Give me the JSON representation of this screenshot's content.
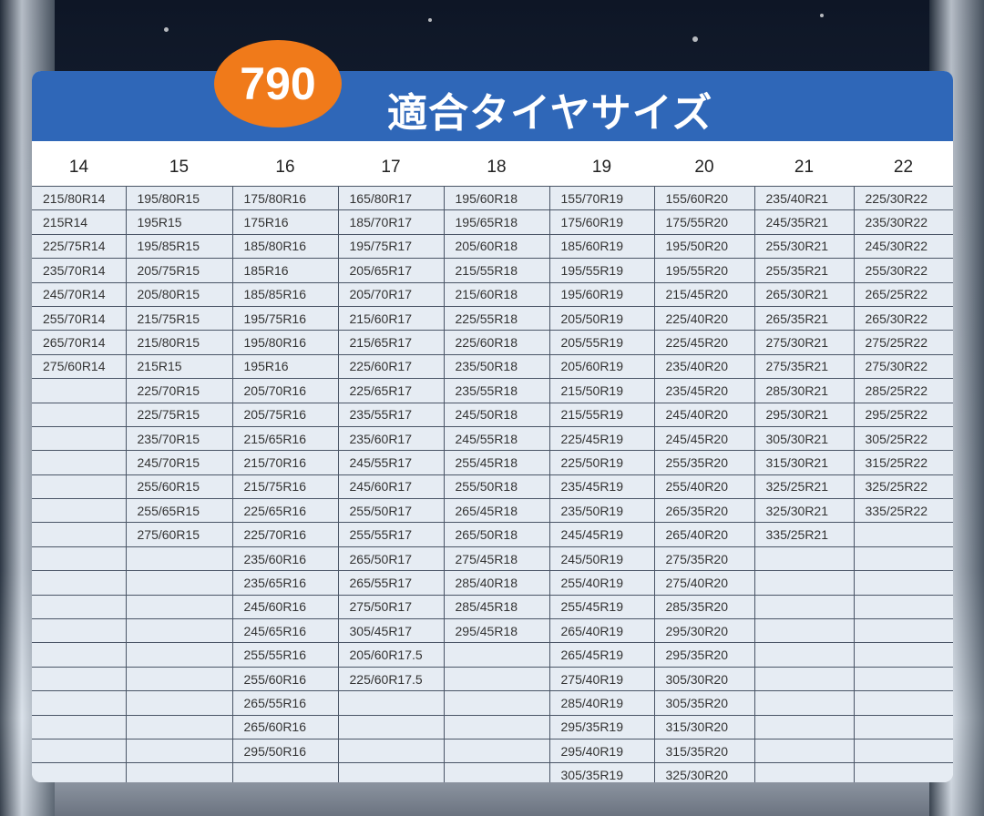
{
  "badge": "790",
  "title": "適合タイヤサイズ",
  "colors": {
    "title_bar": "#2f67b8",
    "badge": "#f07a1a",
    "cell": "#e6ecf3"
  },
  "columns": [
    {
      "header": "14",
      "sizes": [
        "215/80R14",
        "215R14",
        "225/75R14",
        "235/70R14",
        "245/70R14",
        "255/70R14",
        "265/70R14",
        "275/60R14"
      ]
    },
    {
      "header": "15",
      "sizes": [
        "195/80R15",
        "195R15",
        "195/85R15",
        "205/75R15",
        "205/80R15",
        "215/75R15",
        "215/80R15",
        "215R15",
        "225/70R15",
        "225/75R15",
        "235/70R15",
        "245/70R15",
        "255/60R15",
        "255/65R15",
        "275/60R15"
      ]
    },
    {
      "header": "16",
      "sizes": [
        "175/80R16",
        "175R16",
        "185/80R16",
        "185R16",
        "185/85R16",
        "195/75R16",
        "195/80R16",
        "195R16",
        "205/70R16",
        "205/75R16",
        "215/65R16",
        "215/70R16",
        "215/75R16",
        "225/65R16",
        "225/70R16",
        "235/60R16",
        "235/65R16",
        "245/60R16",
        "245/65R16",
        "255/55R16",
        "255/60R16",
        "265/55R16",
        "265/60R16",
        "295/50R16"
      ]
    },
    {
      "header": "17",
      "sizes": [
        "165/80R17",
        "185/70R17",
        "195/75R17",
        "205/65R17",
        "205/70R17",
        "215/60R17",
        "215/65R17",
        "225/60R17",
        "225/65R17",
        "235/55R17",
        "235/60R17",
        "245/55R17",
        "245/60R17",
        "255/50R17",
        "255/55R17",
        "265/50R17",
        "265/55R17",
        "275/50R17",
        "305/45R17",
        "205/60R17.5",
        "225/60R17.5"
      ]
    },
    {
      "header": "18",
      "sizes": [
        "195/60R18",
        "195/65R18",
        "205/60R18",
        "215/55R18",
        "215/60R18",
        "225/55R18",
        "225/60R18",
        "235/50R18",
        "235/55R18",
        "245/50R18",
        "245/55R18",
        "255/45R18",
        "255/50R18",
        "265/45R18",
        "265/50R18",
        "275/45R18",
        "285/40R18",
        "285/45R18",
        "295/45R18"
      ]
    },
    {
      "header": "19",
      "sizes": [
        "155/70R19",
        "175/60R19",
        "185/60R19",
        "195/55R19",
        "195/60R19",
        "205/50R19",
        "205/55R19",
        "205/60R19",
        "215/50R19",
        "215/55R19",
        "225/45R19",
        "225/50R19",
        "235/45R19",
        "235/50R19",
        "245/45R19",
        "245/50R19",
        "255/40R19",
        "255/45R19",
        "265/40R19",
        "265/45R19",
        "275/40R19",
        "285/40R19",
        "295/35R19",
        "295/40R19",
        "305/35R19"
      ]
    },
    {
      "header": "20",
      "sizes": [
        "155/60R20",
        "175/55R20",
        "195/50R20",
        "195/55R20",
        "215/45R20",
        "225/40R20",
        "225/45R20",
        "235/40R20",
        "235/45R20",
        "245/40R20",
        "245/45R20",
        "255/35R20",
        "255/40R20",
        "265/35R20",
        "265/40R20",
        "275/35R20",
        "275/40R20",
        "285/35R20",
        "295/30R20",
        "295/35R20",
        "305/30R20",
        "305/35R20",
        "315/30R20",
        "315/35R20",
        "325/30R20"
      ]
    },
    {
      "header": "21",
      "sizes": [
        "235/40R21",
        "245/35R21",
        "255/30R21",
        "255/35R21",
        "265/30R21",
        "265/35R21",
        "275/30R21",
        "275/35R21",
        "285/30R21",
        "295/30R21",
        "305/30R21",
        "315/30R21",
        "325/25R21",
        "325/30R21",
        "335/25R21"
      ]
    },
    {
      "header": "22",
      "sizes": [
        "225/30R22",
        "235/30R22",
        "245/30R22",
        "255/30R22",
        "265/25R22",
        "265/30R22",
        "275/25R22",
        "275/30R22",
        "285/25R22",
        "295/25R22",
        "305/25R22",
        "315/25R22",
        "325/25R22",
        "335/25R22"
      ]
    }
  ]
}
